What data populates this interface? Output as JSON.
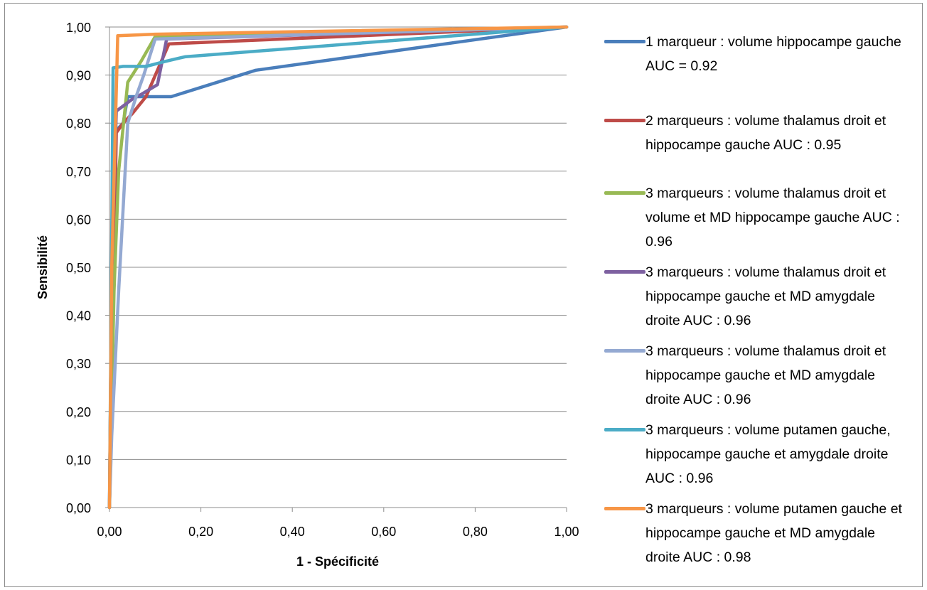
{
  "chart_data": {
    "type": "line",
    "title": "",
    "xlabel": "1 - Spécificité",
    "ylabel": "Sensibilité",
    "xlim": [
      0,
      1
    ],
    "ylim": [
      0,
      1
    ],
    "x_ticks": [
      "0,00",
      "0,20",
      "0,40",
      "0,60",
      "0,80",
      "1,00"
    ],
    "y_ticks": [
      "0,00",
      "0,10",
      "0,20",
      "0,30",
      "0,40",
      "0,50",
      "0,60",
      "0,70",
      "0,80",
      "0,90",
      "1,00"
    ],
    "grid": "horizontal",
    "legend_position": "right",
    "series": [
      {
        "name": "1 marqueur : volume hippocampe gauche AUC = 0.92",
        "color": "#4a7ebb",
        "points": [
          [
            0,
            0
          ],
          [
            0.005,
            0.5
          ],
          [
            0.01,
            0.78
          ],
          [
            0.03,
            0.8
          ],
          [
            0.04,
            0.855
          ],
          [
            0.135,
            0.855
          ],
          [
            0.32,
            0.91
          ],
          [
            1,
            1
          ]
        ]
      },
      {
        "name": "2 marqueurs : volume thalamus droit et hippocampe gauche AUC : 0.95",
        "color": "#be4b48",
        "points": [
          [
            0,
            0
          ],
          [
            0.01,
            0.5
          ],
          [
            0.015,
            0.78
          ],
          [
            0.03,
            0.8
          ],
          [
            0.05,
            0.82
          ],
          [
            0.08,
            0.855
          ],
          [
            0.13,
            0.965
          ],
          [
            1,
            1
          ]
        ]
      },
      {
        "name": "3 marqueurs : volume thalamus droit et volume et MD hippocampe gauche AUC : 0.96",
        "color": "#98b954",
        "points": [
          [
            0,
            0
          ],
          [
            0.01,
            0.45
          ],
          [
            0.02,
            0.7
          ],
          [
            0.04,
            0.885
          ],
          [
            0.07,
            0.93
          ],
          [
            0.1,
            0.98
          ],
          [
            1,
            1
          ]
        ]
      },
      {
        "name": "3 marqueurs : volume thalamus droit et hippocampe gauche et MD amygdale droite AUC : 0.96",
        "color": "#7d60a0",
        "points": [
          [
            0,
            0
          ],
          [
            0.005,
            0.5
          ],
          [
            0.015,
            0.825
          ],
          [
            0.05,
            0.85
          ],
          [
            0.07,
            0.86
          ],
          [
            0.105,
            0.88
          ],
          [
            0.125,
            0.975
          ],
          [
            1,
            1
          ]
        ]
      },
      {
        "name": "3 marqueurs : volume thalamus droit et hippocampe gauche et MD amygdale droite AUC : 0.96",
        "color": "#94a9d2",
        "points": [
          [
            0,
            0
          ],
          [
            0.005,
            0.15
          ],
          [
            0.02,
            0.45
          ],
          [
            0.04,
            0.8
          ],
          [
            0.06,
            0.86
          ],
          [
            0.075,
            0.9
          ],
          [
            0.1,
            0.975
          ],
          [
            1,
            1
          ]
        ]
      },
      {
        "name": "3 marqueurs : volume putamen gauche, hippocampe gauche et amygdale droite AUC : 0.96",
        "color": "#4bacc6",
        "points": [
          [
            0,
            0
          ],
          [
            0.008,
            0.915
          ],
          [
            0.03,
            0.918
          ],
          [
            0.08,
            0.918
          ],
          [
            0.12,
            0.928
          ],
          [
            0.165,
            0.938
          ],
          [
            1,
            1
          ]
        ]
      },
      {
        "name": "3 marqueurs : volume putamen gauche et hippocampe gauche et MD amygdale droite AUC : 0.98",
        "color": "#f79646",
        "points": [
          [
            0,
            0
          ],
          [
            0.005,
            0.5
          ],
          [
            0.018,
            0.982
          ],
          [
            0.1,
            0.985
          ],
          [
            1,
            1
          ]
        ]
      }
    ]
  }
}
